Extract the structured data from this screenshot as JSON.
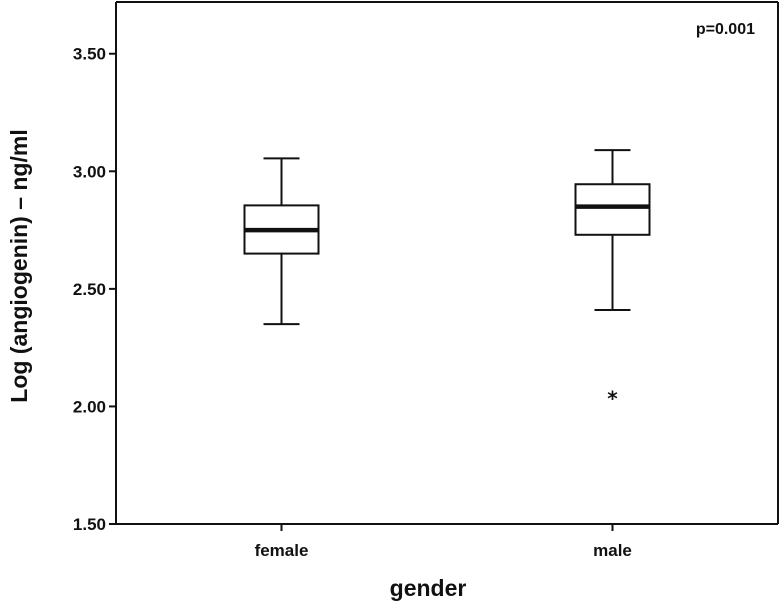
{
  "chart_data": {
    "type": "boxplot",
    "title": "",
    "xlabel": "gender",
    "ylabel": "Log (angiogenin) – ng/ml",
    "ylim": [
      1.5,
      3.72
    ],
    "yticks": [
      1.5,
      2.0,
      2.5,
      3.0,
      3.5
    ],
    "ytick_labels": [
      "1.50",
      "2.00",
      "2.50",
      "3.00",
      "3.50"
    ],
    "grid": false,
    "annotation": "p=0.001",
    "categories": [
      "female",
      "male"
    ],
    "boxes": [
      {
        "category": "female",
        "whisker_low": 2.35,
        "q1": 2.65,
        "median": 2.75,
        "q3": 2.855,
        "whisker_high": 3.055,
        "outliers": []
      },
      {
        "category": "male",
        "whisker_low": 2.41,
        "q1": 2.73,
        "median": 2.85,
        "q3": 2.945,
        "whisker_high": 3.09,
        "outliers": [
          2.05
        ]
      }
    ],
    "outlier_marker": "*"
  }
}
